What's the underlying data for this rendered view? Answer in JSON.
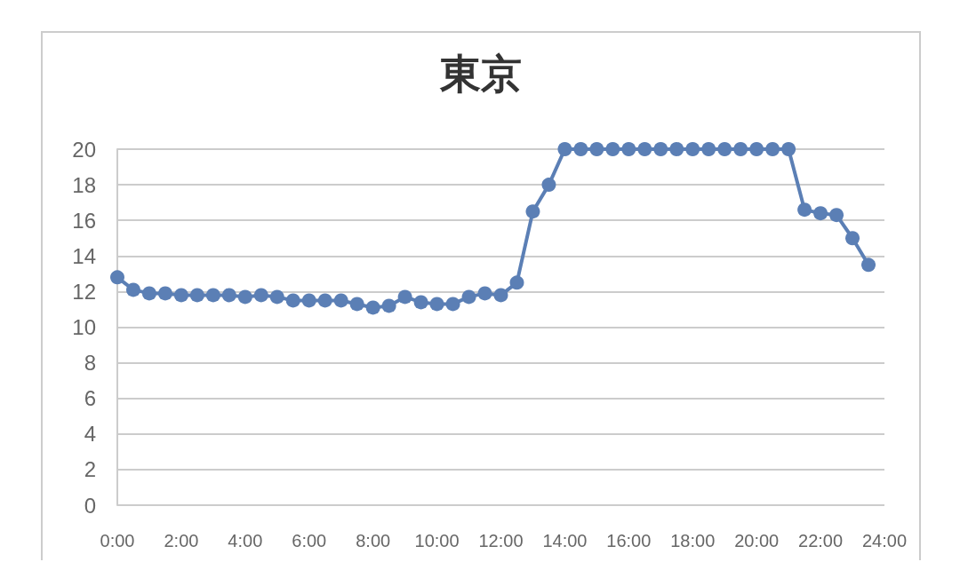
{
  "chart_data": {
    "type": "line",
    "title": "東京",
    "x": [
      0,
      0.5,
      1,
      1.5,
      2,
      2.5,
      3,
      3.5,
      4,
      4.5,
      5,
      5.5,
      6,
      6.5,
      7,
      7.5,
      8,
      8.5,
      9,
      9.5,
      10,
      10.5,
      11,
      11.5,
      12,
      12.5,
      13,
      13.5,
      14,
      14.5,
      15,
      15.5,
      16,
      16.5,
      17,
      17.5,
      18,
      18.5,
      19,
      19.5,
      20,
      20.5,
      21,
      21.5,
      22,
      22.5,
      23,
      23.5
    ],
    "series": [
      {
        "color": "#5b7fb5",
        "values": [
          12.8,
          12.1,
          11.9,
          11.9,
          11.8,
          11.8,
          11.8,
          11.8,
          11.7,
          11.8,
          11.7,
          11.5,
          11.5,
          11.5,
          11.5,
          11.3,
          11.1,
          11.2,
          11.7,
          11.4,
          11.3,
          11.3,
          11.7,
          11.9,
          11.8,
          12.5,
          16.5,
          18,
          20,
          20,
          20,
          20,
          20,
          20,
          20,
          20,
          20,
          20,
          20,
          20,
          20,
          20,
          20,
          16.6,
          16.4,
          16.3,
          15,
          13.5
        ]
      }
    ],
    "xlim": [
      0,
      24
    ],
    "xticks": [
      {
        "value": 0,
        "label": "0:00"
      },
      {
        "value": 2,
        "label": "2:00"
      },
      {
        "value": 4,
        "label": "4:00"
      },
      {
        "value": 6,
        "label": "6:00"
      },
      {
        "value": 8,
        "label": "8:00"
      },
      {
        "value": 10,
        "label": "10:00"
      },
      {
        "value": 12,
        "label": "12:00"
      },
      {
        "value": 14,
        "label": "14:00"
      },
      {
        "value": 16,
        "label": "16:00"
      },
      {
        "value": 18,
        "label": "18:00"
      },
      {
        "value": 20,
        "label": "20:00"
      },
      {
        "value": 22,
        "label": "22:00"
      },
      {
        "value": 24,
        "label": "24:00"
      }
    ],
    "ylim": [
      0,
      20
    ],
    "yticks": [
      0,
      2,
      4,
      6,
      8,
      10,
      12,
      14,
      16,
      18,
      20
    ],
    "grid": "y",
    "marker": "circle",
    "line_style": "solid"
  }
}
